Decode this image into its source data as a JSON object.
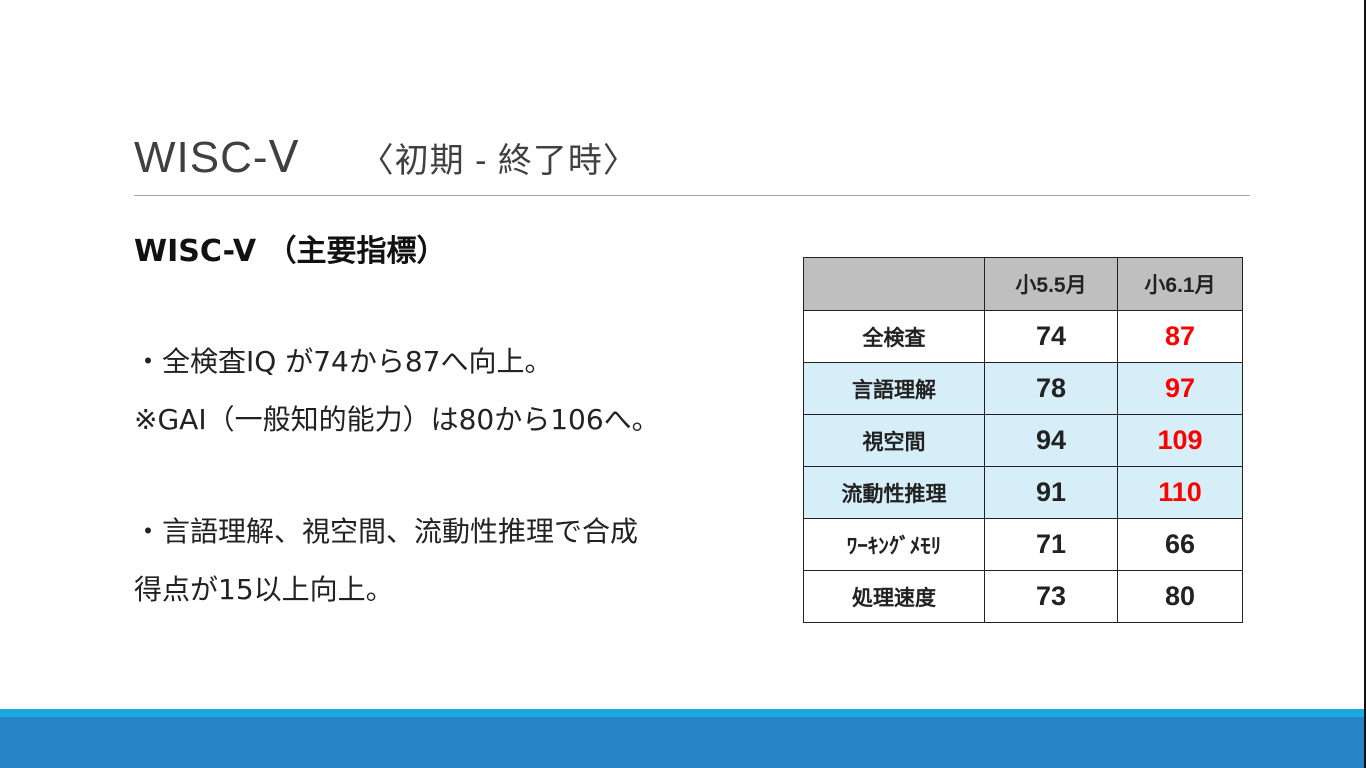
{
  "slide": {
    "title": "WISC-Ⅴ",
    "subtitle": "〈初期 - 終了時〉",
    "heading": "WISC-V （主要指標）",
    "lines": [
      "・全検査IQ が74から87へ向上。",
      "※GAI（一般知的能力）は80から106へ。",
      "・言語理解、視空間、流動性推理で合成",
      "得点が15以上向上。"
    ]
  },
  "table": {
    "columns": [
      "",
      "小5.5月",
      "小6.1月"
    ],
    "rows": [
      {
        "label": "全検査",
        "before": "74",
        "after": "87",
        "highlight": true,
        "shaded": false
      },
      {
        "label": "言語理解",
        "before": "78",
        "after": "97",
        "highlight": true,
        "shaded": true
      },
      {
        "label": "視空間",
        "before": "94",
        "after": "109",
        "highlight": true,
        "shaded": true
      },
      {
        "label": "流動性推理",
        "before": "91",
        "after": "110",
        "highlight": true,
        "shaded": true
      },
      {
        "label": "ﾜｰｷﾝｸﾞﾒﾓﾘ",
        "before": "71",
        "after": "66",
        "highlight": false,
        "shaded": false
      },
      {
        "label": "処理速度",
        "before": "73",
        "after": "80",
        "highlight": false,
        "shaded": false
      }
    ]
  },
  "colors": {
    "highlight": "#ff0000",
    "header_bg": "#bfbfbf",
    "shaded_bg": "#d6eef8",
    "band": "#2683c6",
    "strip": "#1fa8de"
  }
}
